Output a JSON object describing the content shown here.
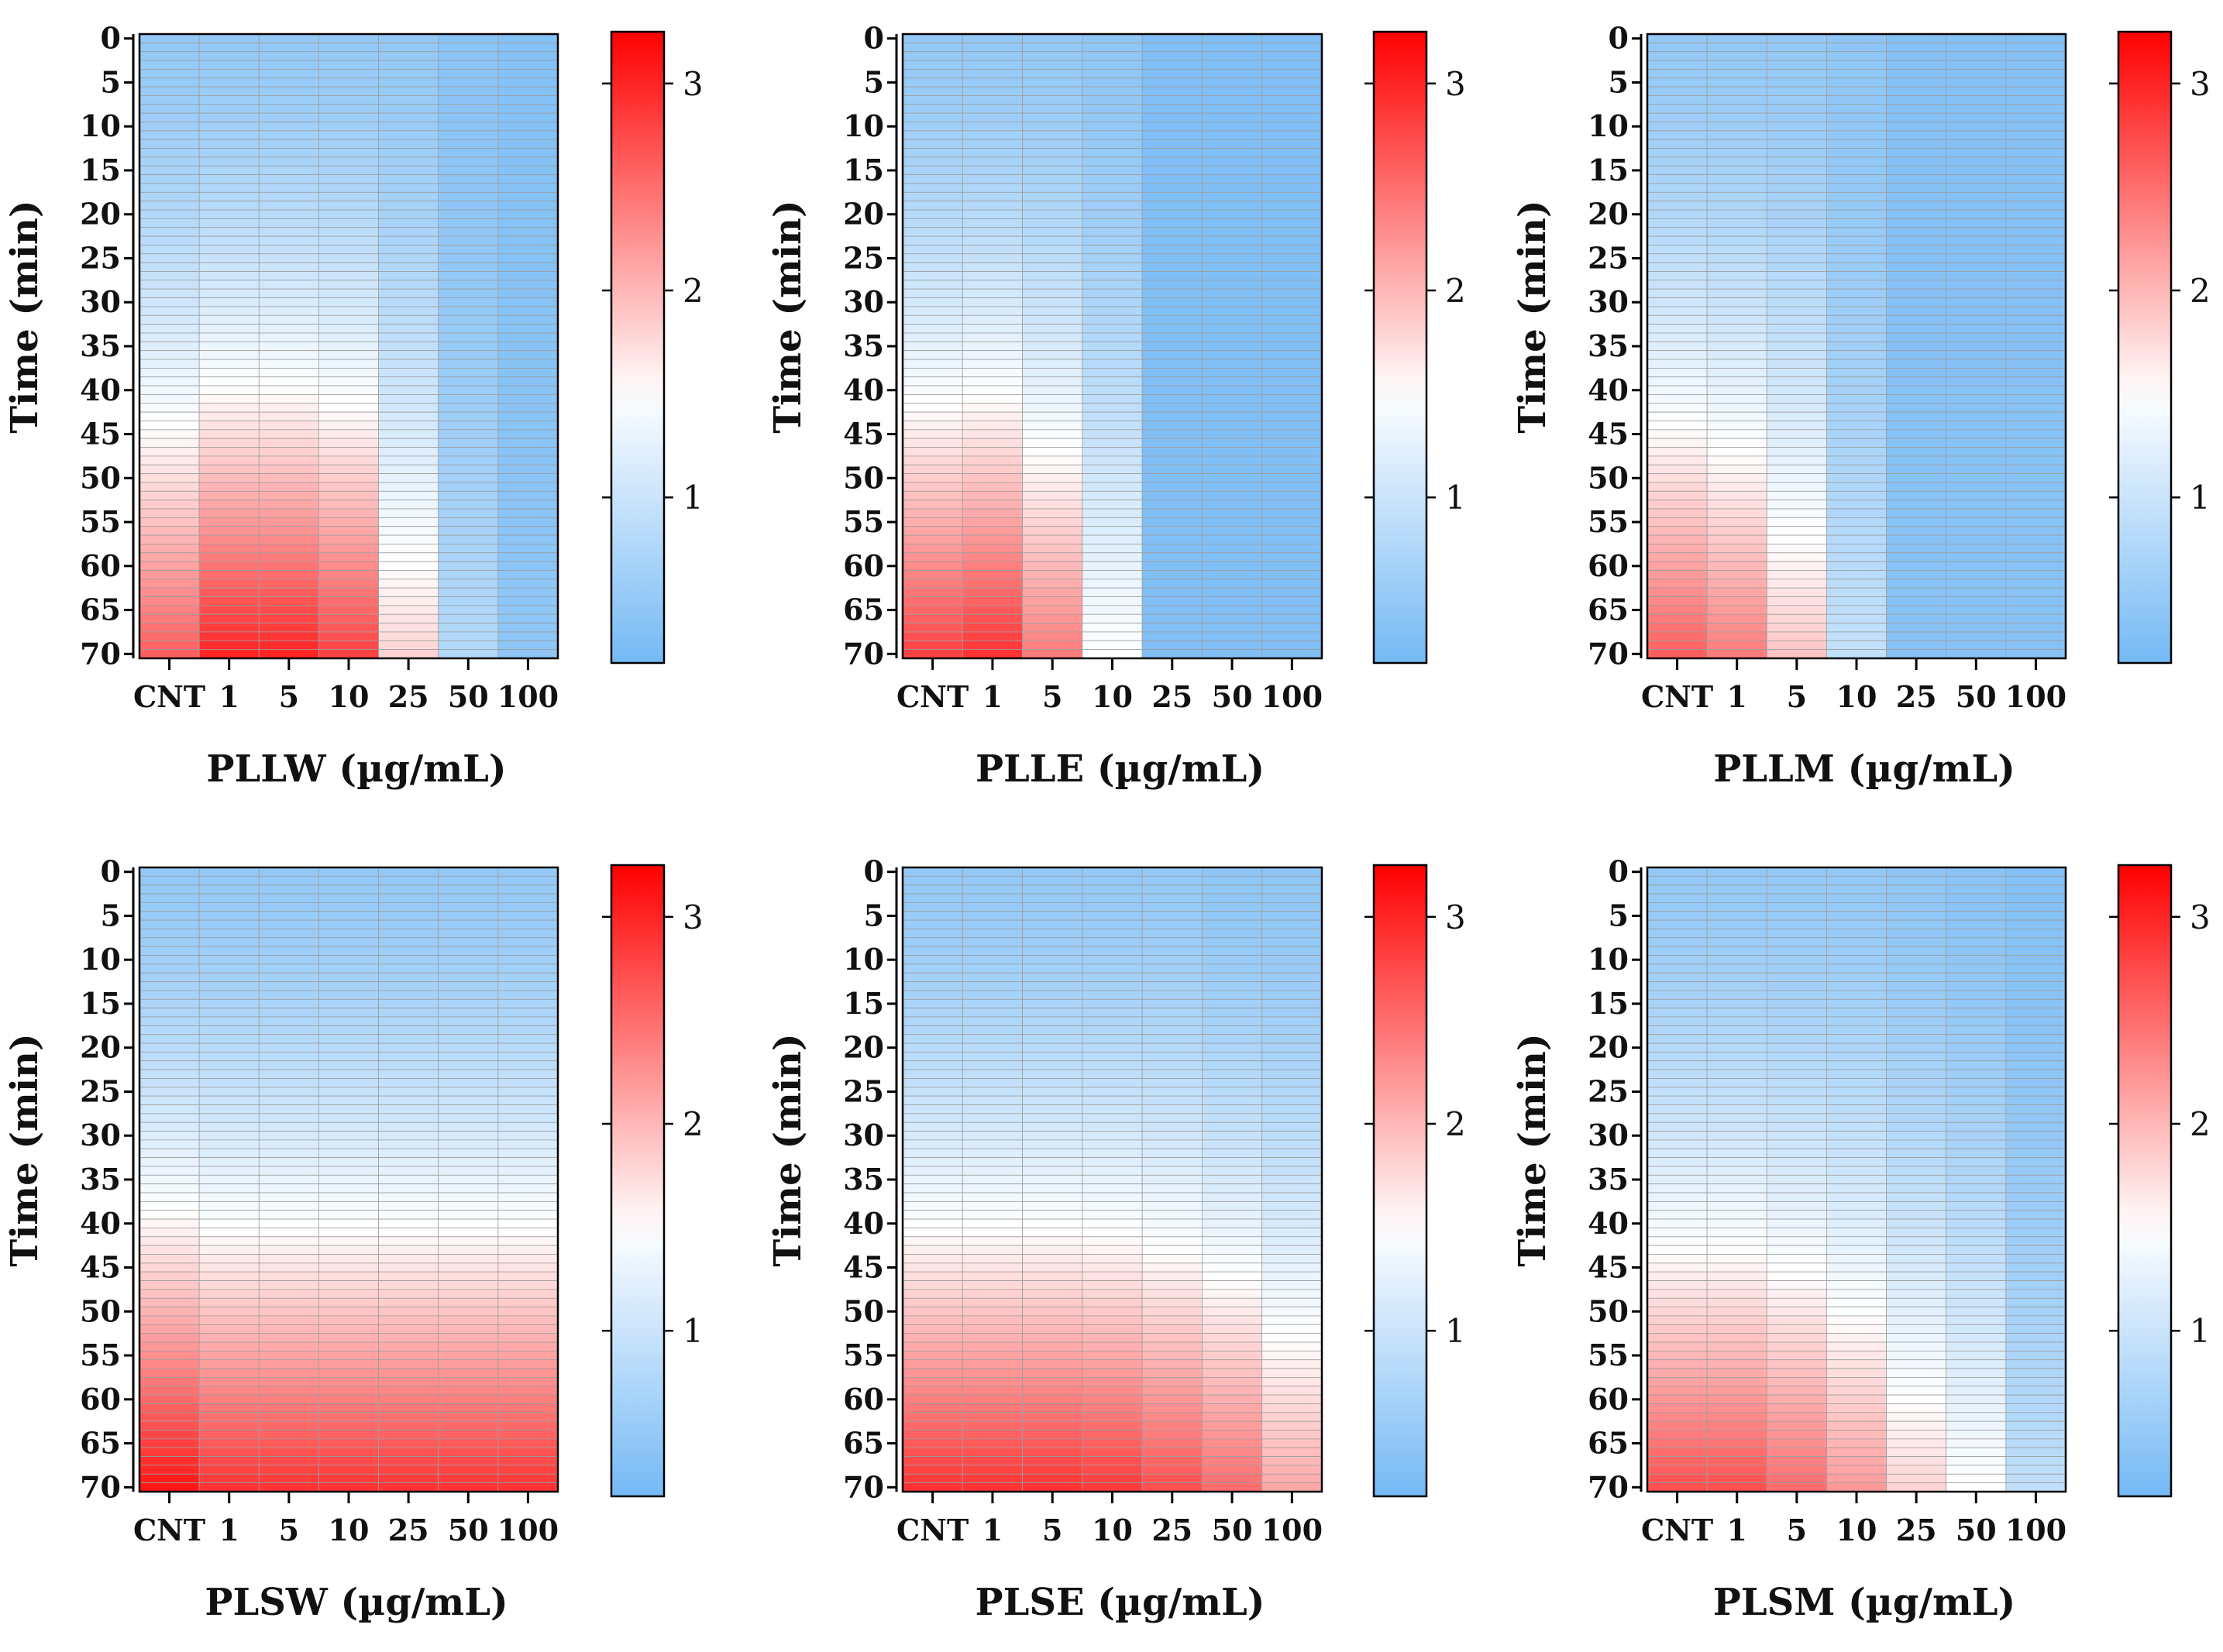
{
  "colors": {
    "low": "#74b9f5",
    "mid": "#ffffff",
    "high": "#ff0000",
    "cell_grid": "#9e9e9e",
    "axis": "#000000"
  },
  "chart_data": [
    {
      "type": "heatmap",
      "xlabel": "PLLW (µg/mL)",
      "ylabel": "Time (min)",
      "x_categories": [
        "CNT",
        "1",
        "5",
        "10",
        "25",
        "50",
        "100"
      ],
      "y_ticks": [
        0,
        5,
        10,
        15,
        20,
        25,
        30,
        35,
        40,
        45,
        50,
        55,
        60,
        65,
        70
      ],
      "ylim": [
        0,
        70
      ],
      "colorbar": {
        "min": 0.2,
        "max": 3.25,
        "ticks": [
          1,
          2,
          3
        ]
      },
      "series": [
        {
          "category": "CNT",
          "start": 0.5,
          "end": 2.6
        },
        {
          "category": "1",
          "start": 0.5,
          "end": 3.0
        },
        {
          "category": "5",
          "start": 0.5,
          "end": 3.0
        },
        {
          "category": "10",
          "start": 0.5,
          "end": 2.8
        },
        {
          "category": "25",
          "start": 0.5,
          "end": 1.8
        },
        {
          "category": "50",
          "start": 0.4,
          "end": 0.8
        },
        {
          "category": "100",
          "start": 0.35,
          "end": 0.45
        }
      ]
    },
    {
      "type": "heatmap",
      "xlabel": "PLLE (µg/mL)",
      "ylabel": "Time (min)",
      "x_categories": [
        "CNT",
        "1",
        "5",
        "10",
        "25",
        "50",
        "100"
      ],
      "y_ticks": [
        0,
        5,
        10,
        15,
        20,
        25,
        30,
        35,
        40,
        45,
        50,
        55,
        60,
        65,
        70
      ],
      "ylim": [
        0,
        70
      ],
      "colorbar": {
        "min": 0.2,
        "max": 3.25,
        "ticks": [
          1,
          2,
          3
        ]
      },
      "series": [
        {
          "category": "CNT",
          "start": 0.5,
          "end": 2.8
        },
        {
          "category": "1",
          "start": 0.5,
          "end": 2.9
        },
        {
          "category": "5",
          "start": 0.5,
          "end": 2.4
        },
        {
          "category": "10",
          "start": 0.45,
          "end": 1.5
        },
        {
          "category": "25",
          "start": 0.3,
          "end": 0.32
        },
        {
          "category": "50",
          "start": 0.3,
          "end": 0.32
        },
        {
          "category": "100",
          "start": 0.3,
          "end": 0.32
        }
      ]
    },
    {
      "type": "heatmap",
      "xlabel": "PLLM (µg/mL)",
      "ylabel": "Time (min)",
      "x_categories": [
        "CNT",
        "1",
        "5",
        "10",
        "25",
        "50",
        "100"
      ],
      "y_ticks": [
        0,
        5,
        10,
        15,
        20,
        25,
        30,
        35,
        40,
        45,
        50,
        55,
        60,
        65,
        70
      ],
      "ylim": [
        0,
        70
      ],
      "colorbar": {
        "min": 0.2,
        "max": 3.25,
        "ticks": [
          1,
          2,
          3
        ]
      },
      "series": [
        {
          "category": "CNT",
          "start": 0.5,
          "end": 2.6
        },
        {
          "category": "1",
          "start": 0.5,
          "end": 2.4
        },
        {
          "category": "5",
          "start": 0.5,
          "end": 1.9
        },
        {
          "category": "10",
          "start": 0.45,
          "end": 0.95
        },
        {
          "category": "25",
          "start": 0.35,
          "end": 0.37
        },
        {
          "category": "50",
          "start": 0.35,
          "end": 0.37
        },
        {
          "category": "100",
          "start": 0.35,
          "end": 0.37
        }
      ]
    },
    {
      "type": "heatmap",
      "xlabel": "PLSW (µg/mL)",
      "ylabel": "Time (min)",
      "x_categories": [
        "CNT",
        "1",
        "5",
        "10",
        "25",
        "50",
        "100"
      ],
      "y_ticks": [
        0,
        5,
        10,
        15,
        20,
        25,
        30,
        35,
        40,
        45,
        50,
        55,
        60,
        65,
        70
      ],
      "ylim": [
        0,
        70
      ],
      "colorbar": {
        "min": 0.2,
        "max": 3.25,
        "ticks": [
          1,
          2,
          3
        ]
      },
      "series": [
        {
          "category": "CNT",
          "start": 0.5,
          "end": 3.1
        },
        {
          "category": "1",
          "start": 0.5,
          "end": 2.9
        },
        {
          "category": "5",
          "start": 0.5,
          "end": 2.9
        },
        {
          "category": "10",
          "start": 0.5,
          "end": 2.9
        },
        {
          "category": "25",
          "start": 0.5,
          "end": 2.9
        },
        {
          "category": "50",
          "start": 0.5,
          "end": 2.9
        },
        {
          "category": "100",
          "start": 0.5,
          "end": 2.9
        }
      ]
    },
    {
      "type": "heatmap",
      "xlabel": "PLSE (µg/mL)",
      "ylabel": "Time (min)",
      "x_categories": [
        "CNT",
        "1",
        "5",
        "10",
        "25",
        "50",
        "100"
      ],
      "y_ticks": [
        0,
        5,
        10,
        15,
        20,
        25,
        30,
        35,
        40,
        45,
        50,
        55,
        60,
        65,
        70
      ],
      "ylim": [
        0,
        70
      ],
      "colorbar": {
        "min": 0.2,
        "max": 3.25,
        "ticks": [
          1,
          2,
          3
        ]
      },
      "series": [
        {
          "category": "CNT",
          "start": 0.5,
          "end": 2.9
        },
        {
          "category": "1",
          "start": 0.5,
          "end": 2.9
        },
        {
          "category": "5",
          "start": 0.5,
          "end": 2.9
        },
        {
          "category": "10",
          "start": 0.5,
          "end": 2.85
        },
        {
          "category": "25",
          "start": 0.5,
          "end": 2.7
        },
        {
          "category": "50",
          "start": 0.45,
          "end": 2.5
        },
        {
          "category": "100",
          "start": 0.45,
          "end": 2.1
        }
      ]
    },
    {
      "type": "heatmap",
      "xlabel": "PLSM (µg/mL)",
      "ylabel": "Time (min)",
      "x_categories": [
        "CNT",
        "1",
        "5",
        "10",
        "25",
        "50",
        "100"
      ],
      "y_ticks": [
        0,
        5,
        10,
        15,
        20,
        25,
        30,
        35,
        40,
        45,
        50,
        55,
        60,
        65,
        70
      ],
      "ylim": [
        0,
        70
      ],
      "colorbar": {
        "min": 0.2,
        "max": 3.25,
        "ticks": [
          1,
          2,
          3
        ]
      },
      "series": [
        {
          "category": "CNT",
          "start": 0.5,
          "end": 2.7
        },
        {
          "category": "1",
          "start": 0.5,
          "end": 2.7
        },
        {
          "category": "5",
          "start": 0.5,
          "end": 2.5
        },
        {
          "category": "10",
          "start": 0.5,
          "end": 2.2
        },
        {
          "category": "25",
          "start": 0.45,
          "end": 1.8
        },
        {
          "category": "50",
          "start": 0.4,
          "end": 1.5
        },
        {
          "category": "100",
          "start": 0.35,
          "end": 0.9
        }
      ]
    }
  ]
}
